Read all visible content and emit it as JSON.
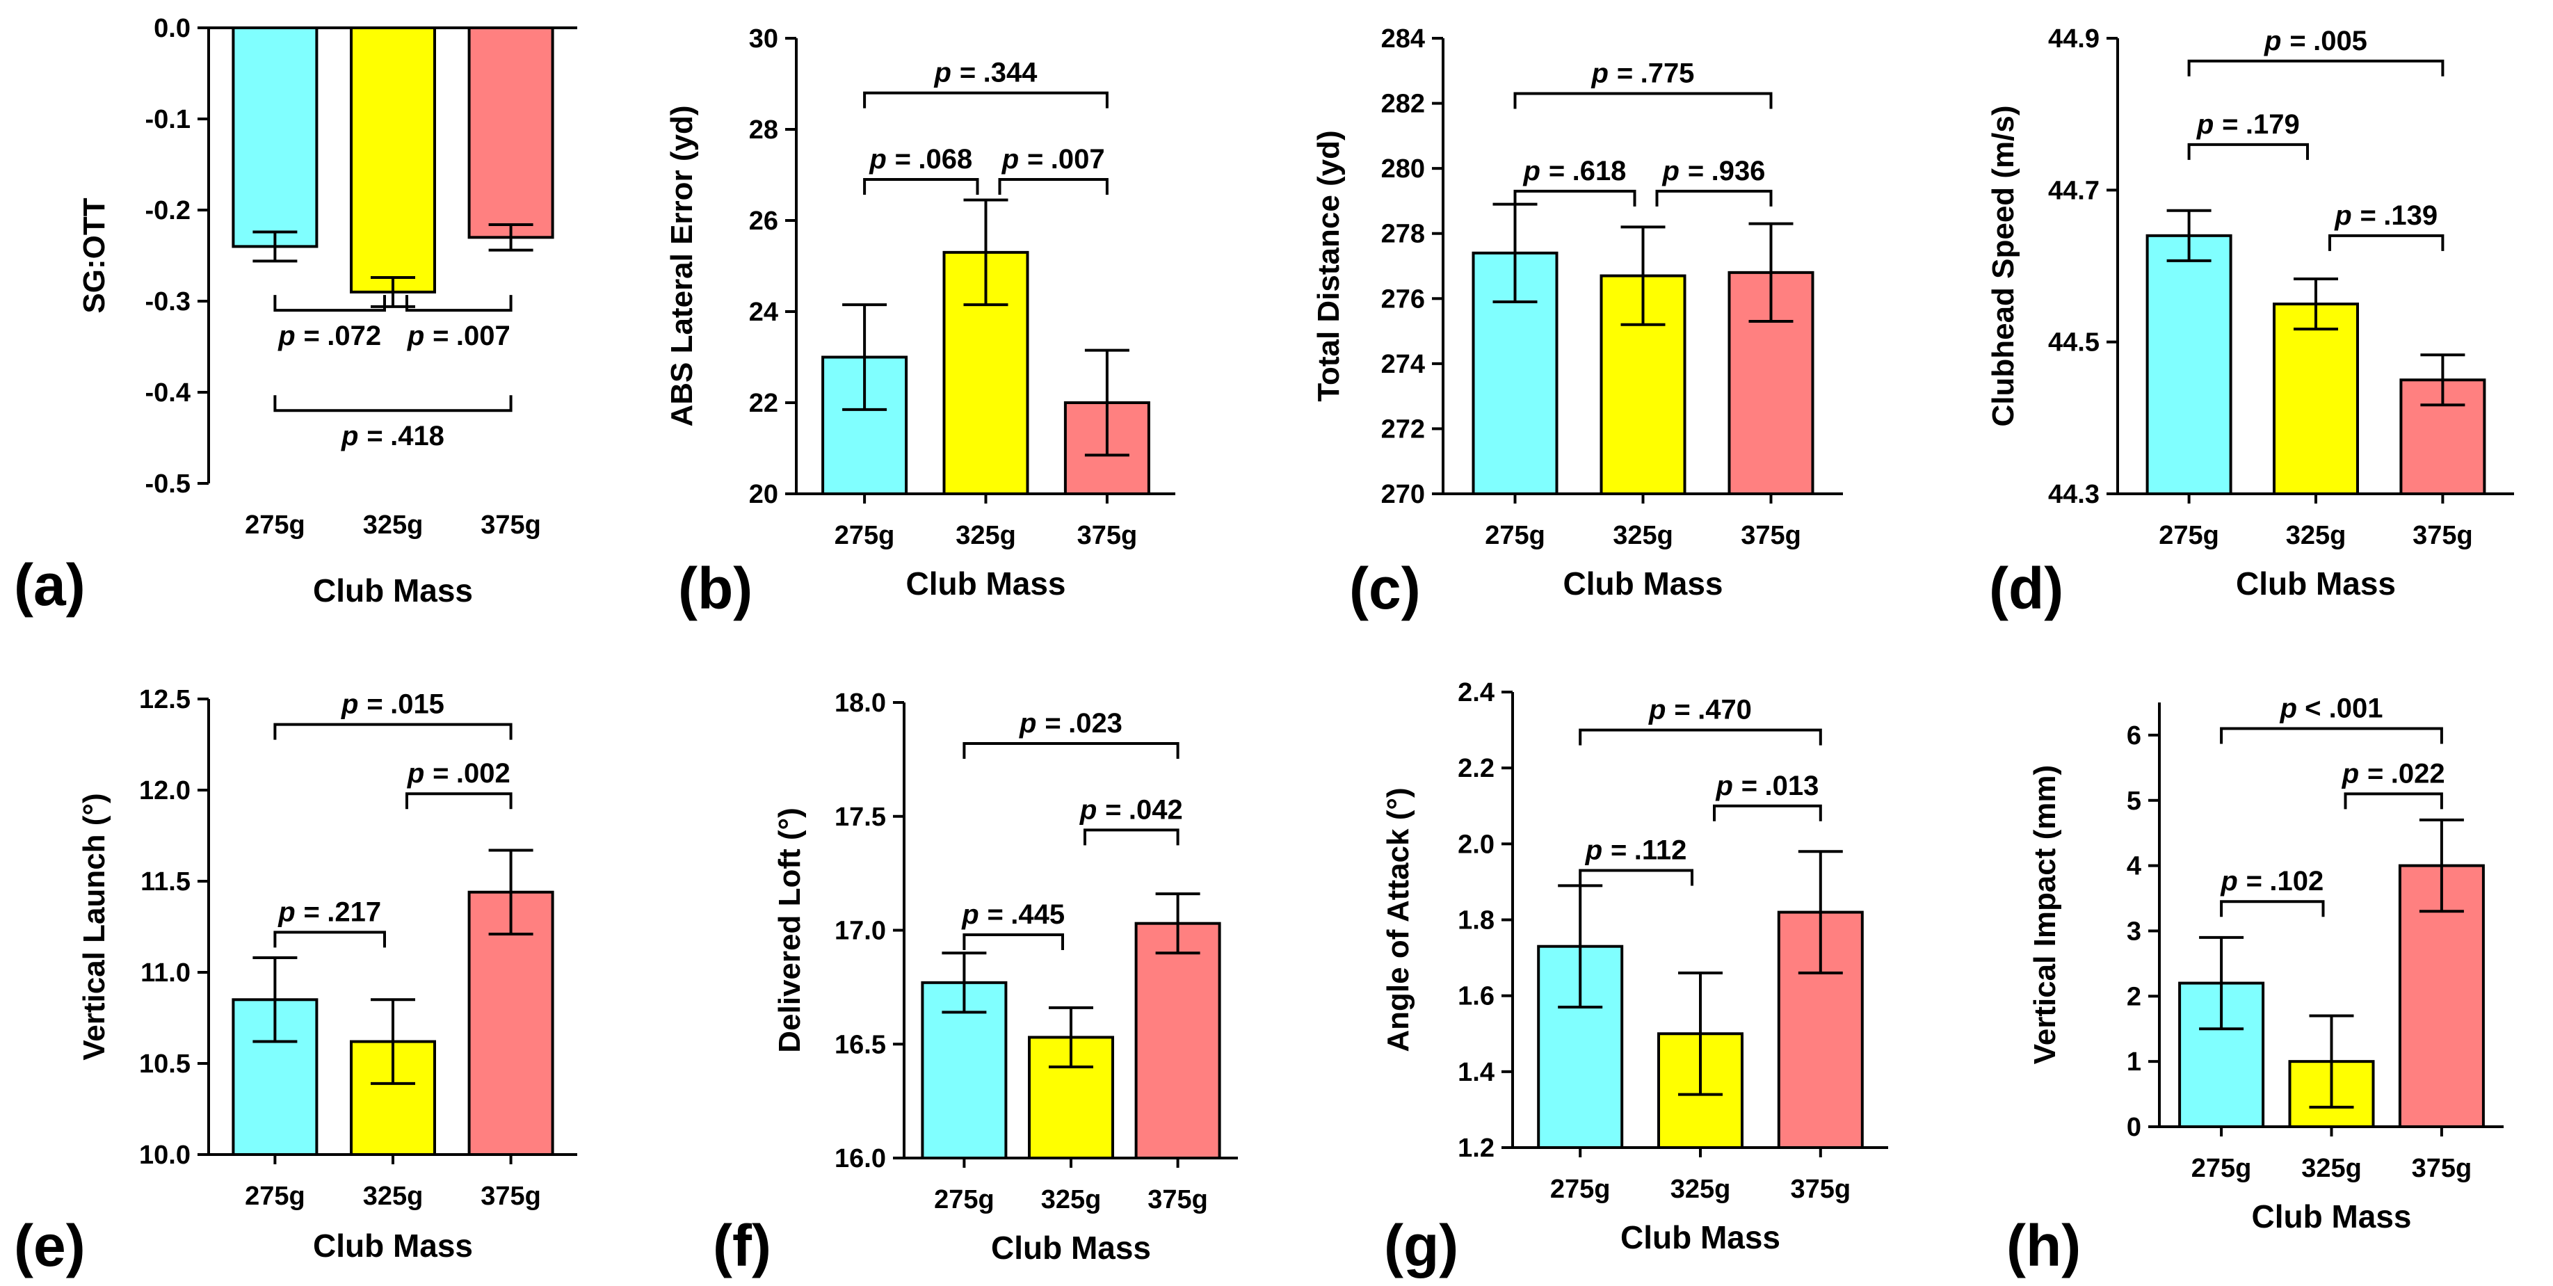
{
  "chart_data": [
    {
      "panel": "(a)",
      "type": "bar",
      "xlabel": "Club Mass",
      "ylabel": "SG:OTT",
      "categories": [
        "275g",
        "325g",
        "375g"
      ],
      "colors": [
        "#80ffff",
        "#ffff00",
        "#ff8080"
      ],
      "values": [
        -0.24,
        -0.29,
        -0.23
      ],
      "errors": [
        0.016,
        0.016,
        0.014
      ],
      "ylim": [
        -0.5,
        0.0
      ],
      "yticks": [
        0.0,
        -0.1,
        -0.2,
        -0.3,
        -0.4,
        -0.5
      ],
      "ytick_labels": [
        "0.0",
        "-0.1",
        "-0.2",
        "-0.3",
        "-0.4",
        "-0.5"
      ],
      "brackets": [
        {
          "from": 0,
          "to": 1,
          "label": ".072",
          "prefix": "p = ",
          "y": -0.31,
          "direction": "down"
        },
        {
          "from": 1,
          "to": 2,
          "label": ".007",
          "prefix": "p = ",
          "y": -0.31,
          "direction": "down"
        },
        {
          "from": 0,
          "to": 2,
          "label": ".418",
          "prefix": "p = ",
          "y": -0.42,
          "direction": "down"
        }
      ]
    },
    {
      "panel": "(b)",
      "type": "bar",
      "xlabel": "Club Mass",
      "ylabel": "ABS Lateral Error (yd)",
      "categories": [
        "275g",
        "325g",
        "375g"
      ],
      "colors": [
        "#80ffff",
        "#ffff00",
        "#ff8080"
      ],
      "values": [
        23.0,
        25.3,
        22.0
      ],
      "errors": [
        1.15,
        1.15,
        1.15
      ],
      "ylim": [
        20,
        30
      ],
      "yticks": [
        20,
        22,
        24,
        26,
        28,
        30
      ],
      "ytick_labels": [
        "20",
        "22",
        "24",
        "26",
        "28",
        "30"
      ],
      "brackets": [
        {
          "from": 0,
          "to": 1,
          "label": ".068",
          "prefix": "p = ",
          "y": 26.9,
          "direction": "up"
        },
        {
          "from": 1,
          "to": 2,
          "label": ".007",
          "prefix": "p = ",
          "y": 26.9,
          "direction": "up"
        },
        {
          "from": 0,
          "to": 2,
          "label": ".344",
          "prefix": "p = ",
          "y": 28.8,
          "direction": "up"
        }
      ]
    },
    {
      "panel": "(c)",
      "type": "bar",
      "xlabel": "Club Mass",
      "ylabel": "Total Distance (yd)",
      "categories": [
        "275g",
        "325g",
        "375g"
      ],
      "colors": [
        "#80ffff",
        "#ffff00",
        "#ff8080"
      ],
      "values": [
        277.4,
        276.7,
        276.8
      ],
      "errors": [
        1.5,
        1.5,
        1.5
      ],
      "ylim": [
        270,
        284
      ],
      "yticks": [
        270,
        272,
        274,
        276,
        278,
        280,
        282,
        284
      ],
      "ytick_labels": [
        "270",
        "272",
        "274",
        "276",
        "278",
        "280",
        "282",
        "284"
      ],
      "brackets": [
        {
          "from": 0,
          "to": 1,
          "label": ".618",
          "prefix": "p = ",
          "y": 279.3,
          "direction": "up"
        },
        {
          "from": 1,
          "to": 2,
          "label": ".936",
          "prefix": "p = ",
          "y": 279.3,
          "direction": "up"
        },
        {
          "from": 0,
          "to": 2,
          "label": ".775",
          "prefix": "p = ",
          "y": 282.3,
          "direction": "up"
        }
      ]
    },
    {
      "panel": "(d)",
      "type": "bar",
      "xlabel": "Club Mass",
      "ylabel": "Clubhead Speed (m/s)",
      "categories": [
        "275g",
        "325g",
        "375g"
      ],
      "colors": [
        "#80ffff",
        "#ffff00",
        "#ff8080"
      ],
      "values": [
        44.64,
        44.55,
        44.45
      ],
      "errors": [
        0.033,
        0.033,
        0.033
      ],
      "ylim": [
        44.3,
        44.9
      ],
      "yticks": [
        44.3,
        44.5,
        44.7,
        44.9
      ],
      "ytick_labels": [
        "44.3",
        "44.5",
        "44.7",
        "44.9"
      ],
      "brackets": [
        {
          "from": 0,
          "to": 1,
          "label": ".179",
          "prefix": "p = ",
          "y": 44.76,
          "direction": "up"
        },
        {
          "from": 1,
          "to": 2,
          "label": ".139",
          "prefix": "p = ",
          "y": 44.64,
          "direction": "up"
        },
        {
          "from": 0,
          "to": 2,
          "label": ".005",
          "prefix": "p = ",
          "y": 44.87,
          "direction": "up"
        }
      ]
    },
    {
      "panel": "(e)",
      "type": "bar",
      "xlabel": "Club Mass",
      "ylabel": "Vertical Launch (°)",
      "categories": [
        "275g",
        "325g",
        "375g"
      ],
      "colors": [
        "#80ffff",
        "#ffff00",
        "#ff8080"
      ],
      "values": [
        10.85,
        10.62,
        11.44
      ],
      "errors": [
        0.23,
        0.23,
        0.23
      ],
      "ylim": [
        10.0,
        12.5
      ],
      "yticks": [
        10.0,
        10.5,
        11.0,
        11.5,
        12.0,
        12.5
      ],
      "ytick_labels": [
        "10.0",
        "10.5",
        "11.0",
        "11.5",
        "12.0",
        "12.5"
      ],
      "brackets": [
        {
          "from": 0,
          "to": 1,
          "label": ".217",
          "prefix": "p = ",
          "y": 11.22,
          "direction": "up"
        },
        {
          "from": 1,
          "to": 2,
          "label": ".002",
          "prefix": "p = ",
          "y": 11.98,
          "direction": "up"
        },
        {
          "from": 0,
          "to": 2,
          "label": ".015",
          "prefix": "p = ",
          "y": 12.36,
          "direction": "up"
        }
      ]
    },
    {
      "panel": "(f)",
      "type": "bar",
      "xlabel": "Club Mass",
      "ylabel": "Delivered Loft (°)",
      "categories": [
        "275g",
        "325g",
        "375g"
      ],
      "colors": [
        "#80ffff",
        "#ffff00",
        "#ff8080"
      ],
      "values": [
        16.77,
        16.53,
        17.03
      ],
      "errors": [
        0.13,
        0.13,
        0.13
      ],
      "ylim": [
        16.0,
        18.0
      ],
      "yticks": [
        16.0,
        16.5,
        17.0,
        17.5,
        18.0
      ],
      "ytick_labels": [
        "16.0",
        "16.5",
        "17.0",
        "17.5",
        "18.0"
      ],
      "brackets": [
        {
          "from": 0,
          "to": 1,
          "label": ".445",
          "prefix": "p = ",
          "y": 16.98,
          "direction": "up"
        },
        {
          "from": 1,
          "to": 2,
          "label": ".042",
          "prefix": "p = ",
          "y": 17.44,
          "direction": "up"
        },
        {
          "from": 0,
          "to": 2,
          "label": ".023",
          "prefix": "p = ",
          "y": 17.82,
          "direction": "up"
        }
      ]
    },
    {
      "panel": "(g)",
      "type": "bar",
      "xlabel": "Club Mass",
      "ylabel": "Angle of Attack (°)",
      "categories": [
        "275g",
        "325g",
        "375g"
      ],
      "colors": [
        "#80ffff",
        "#ffff00",
        "#ff8080"
      ],
      "values": [
        1.73,
        1.5,
        1.82
      ],
      "errors": [
        0.16,
        0.16,
        0.16
      ],
      "ylim": [
        1.2,
        2.4
      ],
      "yticks": [
        1.2,
        1.4,
        1.6,
        1.8,
        2.0,
        2.2,
        2.4
      ],
      "ytick_labels": [
        "1.2",
        "1.4",
        "1.6",
        "1.8",
        "2.0",
        "2.2",
        "2.4"
      ],
      "brackets": [
        {
          "from": 0,
          "to": 1,
          "label": ".112",
          "prefix": "p = ",
          "y": 1.93,
          "direction": "up"
        },
        {
          "from": 1,
          "to": 2,
          "label": ".013",
          "prefix": "p = ",
          "y": 2.1,
          "direction": "up"
        },
        {
          "from": 0,
          "to": 2,
          "label": ".470",
          "prefix": "p = ",
          "y": 2.3,
          "direction": "up"
        }
      ]
    },
    {
      "panel": "(h)",
      "type": "bar",
      "xlabel": "Club Mass",
      "ylabel": "Vertical Impact (mm)",
      "categories": [
        "275g",
        "325g",
        "375g"
      ],
      "colors": [
        "#80ffff",
        "#ffff00",
        "#ff8080"
      ],
      "values": [
        2.2,
        1.0,
        4.0
      ],
      "errors": [
        0.7,
        0.7,
        0.7
      ],
      "ylim": [
        0,
        6.5
      ],
      "yticks": [
        0,
        1,
        2,
        3,
        4,
        5,
        6
      ],
      "ytick_labels": [
        "0",
        "1",
        "2",
        "3",
        "4",
        "5",
        "6"
      ],
      "brackets": [
        {
          "from": 0,
          "to": 1,
          "label": ".102",
          "prefix": "p = ",
          "y": 3.45,
          "direction": "up"
        },
        {
          "from": 1,
          "to": 2,
          "label": ".022",
          "prefix": "p = ",
          "y": 5.1,
          "direction": "up"
        },
        {
          "from": 0,
          "to": 2,
          "label": "< .001",
          "prefix": "p ",
          "y": 6.1,
          "direction": "up"
        }
      ]
    }
  ]
}
